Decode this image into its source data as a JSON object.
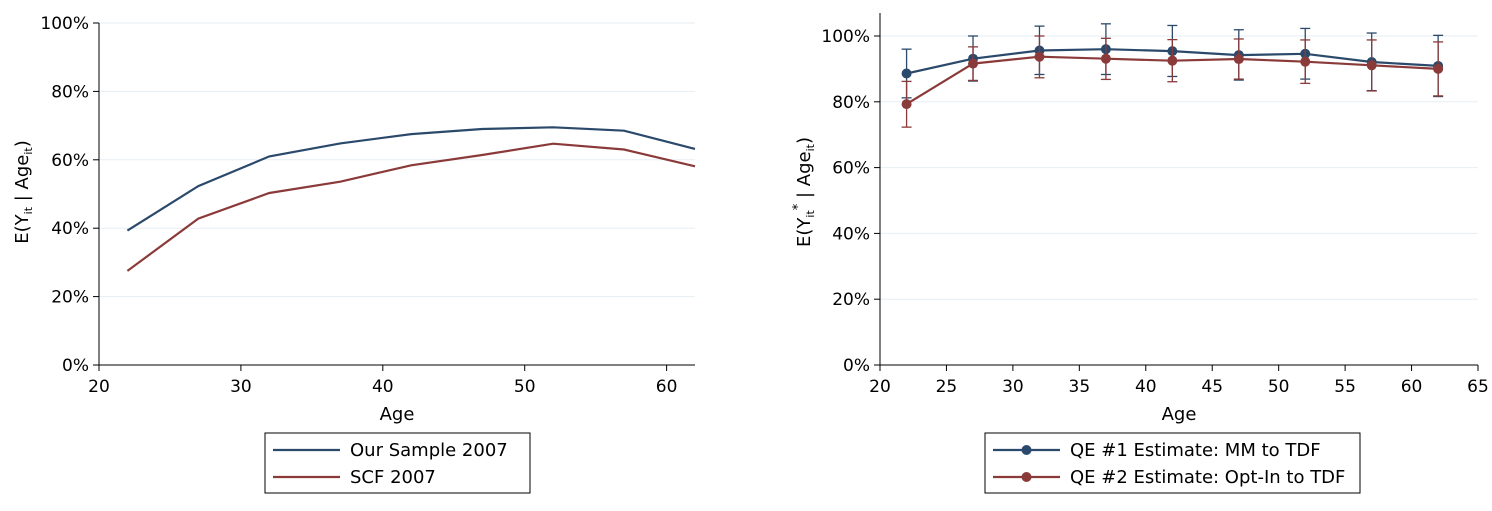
{
  "chart_data": [
    {
      "type": "line",
      "title": "",
      "xlabel": "Age",
      "ylabel_main": "E(Y",
      "ylabel_sub1": "it",
      "ylabel_mid": " | Age",
      "ylabel_sub2": "it",
      "ylabel_end": ")",
      "xlim": [
        20,
        62
      ],
      "ylim": [
        0,
        100
      ],
      "x_ticks": [
        20,
        30,
        40,
        50,
        60
      ],
      "x_tick_labels": [
        "20",
        "30",
        "40",
        "50",
        "60"
      ],
      "y_ticks": [
        0,
        20,
        40,
        60,
        80,
        100
      ],
      "y_tick_labels": [
        "0%",
        "20%",
        "40%",
        "60%",
        "80%",
        "100%"
      ],
      "grid": true,
      "legend_placement": "bottom",
      "x": [
        22,
        27,
        32,
        37,
        42,
        47,
        52,
        57,
        62
      ],
      "series": [
        {
          "name": "Our Sample 2007",
          "color": "#2b4a6b",
          "values": [
            39.3,
            52.3,
            61.0,
            64.8,
            67.5,
            69.0,
            69.5,
            68.5,
            63.2
          ]
        },
        {
          "name": "SCF 2007",
          "color": "#8b3a3a",
          "values": [
            27.5,
            42.8,
            50.3,
            53.6,
            58.4,
            61.4,
            64.7,
            63.0,
            58.1
          ]
        }
      ]
    },
    {
      "type": "line",
      "title": "",
      "xlabel": "Age",
      "ylabel_main": "E(Y",
      "ylabel_sub1": "it",
      "ylabel_sup": "*",
      "ylabel_mid": " | Age",
      "ylabel_sub2": "it",
      "ylabel_end": ")",
      "xlim": [
        20,
        65
      ],
      "ylim": [
        0,
        100
      ],
      "x_ticks": [
        20,
        25,
        30,
        35,
        40,
        45,
        50,
        55,
        60,
        65
      ],
      "x_tick_labels": [
        "20",
        "25",
        "30",
        "35",
        "40",
        "45",
        "50",
        "55",
        "60",
        "65"
      ],
      "y_ticks": [
        0,
        20,
        40,
        60,
        80,
        100
      ],
      "y_tick_labels": [
        "0%",
        "20%",
        "40%",
        "60%",
        "80%",
        "100%"
      ],
      "grid": true,
      "legend_placement": "bottom",
      "x": [
        22,
        27,
        32,
        37,
        42,
        47,
        52,
        57,
        62
      ],
      "series": [
        {
          "name": "QE #1 Estimate: MM to TDF",
          "color": "#2b4a6b",
          "values": [
            88.6,
            93.1,
            95.6,
            96.0,
            95.4,
            94.2,
            94.6,
            92.1,
            90.9
          ],
          "upper": [
            96.0,
            100.0,
            103.0,
            103.7,
            103.2,
            101.9,
            102.3,
            100.9,
            100.2
          ],
          "lower": [
            81.2,
            86.3,
            88.3,
            88.3,
            87.7,
            86.6,
            86.9,
            83.4,
            81.6
          ]
        },
        {
          "name": "QE #2 Estimate: Opt-In to TDF",
          "color": "#8b3a3a",
          "values": [
            79.3,
            91.6,
            93.7,
            93.1,
            92.5,
            93.0,
            92.2,
            91.1,
            90.0
          ],
          "upper": [
            86.2,
            96.7,
            100.0,
            99.3,
            98.9,
            99.1,
            98.8,
            98.8,
            98.2
          ],
          "lower": [
            72.3,
            86.5,
            87.3,
            86.8,
            86.1,
            86.9,
            85.6,
            83.3,
            81.8
          ]
        }
      ]
    }
  ]
}
